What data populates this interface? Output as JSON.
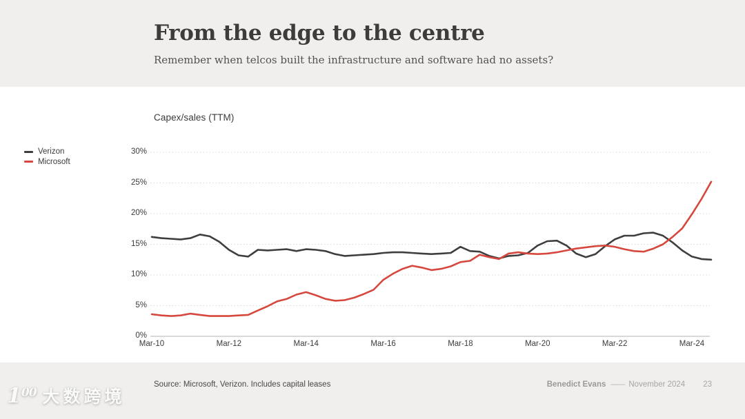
{
  "slide": {
    "title": "From the edge to the centre",
    "subtitle": "Remember when telcos built the infrastructure and software had no assets?",
    "source": "Source: Microsoft, Verizon. Includes capital leases",
    "footer": {
      "author": "Benedict Evans",
      "separator": "——",
      "date": "November 2024",
      "page": "23"
    },
    "watermark": {
      "logo_main": "1",
      "logo_sup": "00",
      "text": "大数跨境"
    }
  },
  "chart_data": {
    "type": "line",
    "title": "Capex/sales (TTM)",
    "unit": "%",
    "frequency": "quarterly",
    "x_start": "Mar-10",
    "x_end": "Sep-24",
    "x_tick_labels": [
      "Mar-10",
      "Mar-12",
      "Mar-14",
      "Mar-16",
      "Mar-18",
      "Mar-20",
      "Mar-22",
      "Mar-24"
    ],
    "y_tick_labels": [
      "30%",
      "25%",
      "20%",
      "15%",
      "10%",
      "5%",
      "0%"
    ],
    "ylim": [
      0,
      30
    ],
    "grid": "horizontal-dotted",
    "legend_position": "left",
    "colors": {
      "verizon": "#3f3e3e",
      "microsoft": "#d6473d",
      "gridline": "#d9d8d6",
      "axis_zero_line": "#c3c1bf"
    },
    "series": [
      {
        "name": "Verizon",
        "color": "#3f3e3e",
        "values": [
          16.2,
          16.0,
          15.9,
          15.8,
          16.0,
          16.6,
          16.3,
          15.4,
          14.1,
          13.2,
          13.0,
          14.1,
          14.0,
          14.1,
          14.2,
          13.9,
          14.2,
          14.1,
          13.9,
          13.4,
          13.1,
          13.2,
          13.3,
          13.4,
          13.6,
          13.7,
          13.7,
          13.6,
          13.5,
          13.4,
          13.5,
          13.6,
          14.6,
          13.9,
          13.8,
          13.1,
          12.7,
          13.1,
          13.2,
          13.6,
          14.8,
          15.5,
          15.6,
          14.8,
          13.5,
          12.9,
          13.4,
          14.7,
          15.8,
          16.4,
          16.4,
          16.8,
          16.9,
          16.4,
          15.3,
          14.0,
          13.0,
          12.6,
          12.5
        ]
      },
      {
        "name": "Microsoft",
        "color": "#d6473d",
        "values": [
          3.6,
          3.4,
          3.3,
          3.4,
          3.7,
          3.5,
          3.3,
          3.3,
          3.3,
          3.4,
          3.5,
          4.2,
          4.9,
          5.7,
          6.1,
          6.8,
          7.2,
          6.7,
          6.1,
          5.8,
          5.9,
          6.3,
          6.9,
          7.6,
          9.2,
          10.2,
          11.0,
          11.5,
          11.2,
          10.8,
          11.0,
          11.4,
          12.1,
          12.3,
          13.3,
          12.9,
          12.6,
          13.5,
          13.7,
          13.5,
          13.4,
          13.5,
          13.7,
          14.0,
          14.3,
          14.5,
          14.7,
          14.8,
          14.6,
          14.2,
          13.9,
          13.8,
          14.3,
          15.0,
          16.2,
          17.6,
          19.9,
          22.4,
          25.2
        ]
      }
    ]
  }
}
